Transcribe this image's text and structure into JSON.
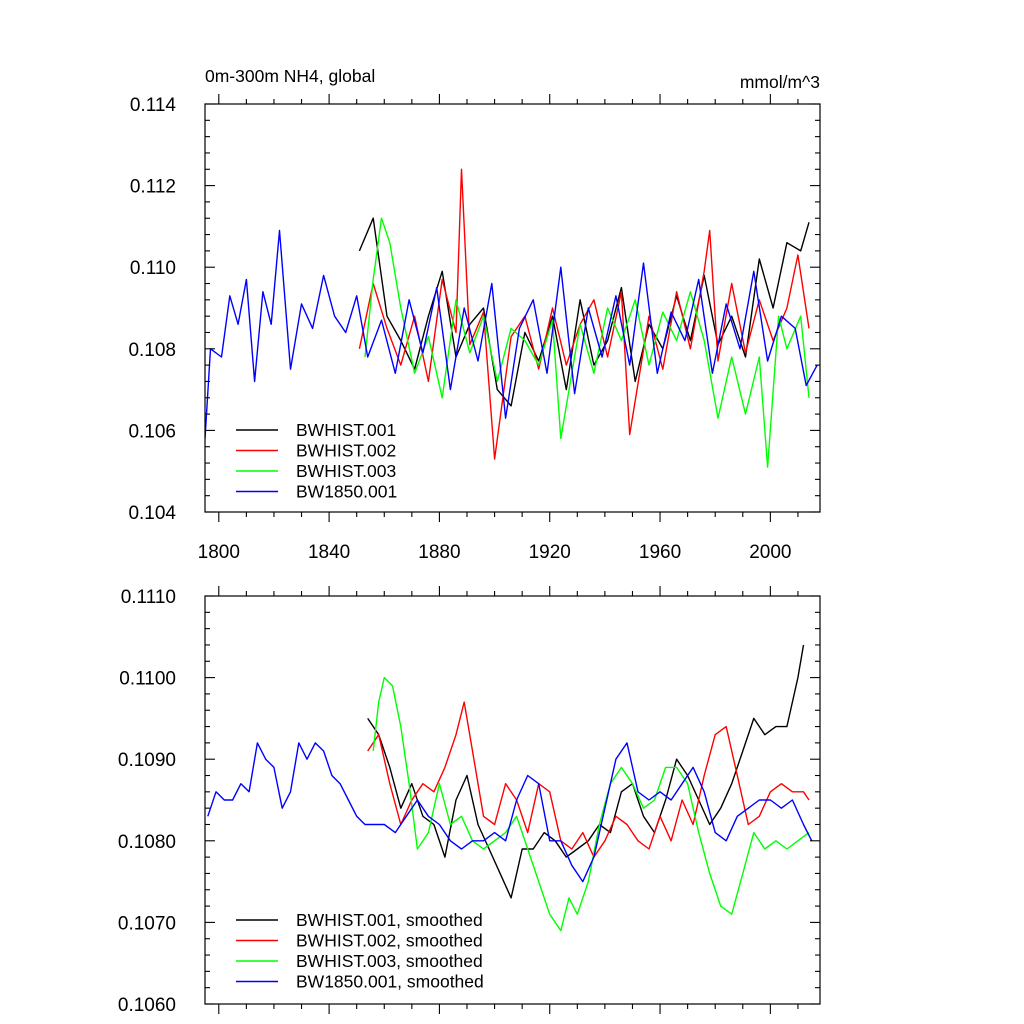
{
  "figure": {
    "title_left": "0m-300m NH4, global",
    "units": "mmol/m^3"
  },
  "chart_data": [
    {
      "type": "line",
      "title": "0m-300m NH4, global",
      "units": "mmol/m^3",
      "xlim": [
        1795,
        2018
      ],
      "ylim": [
        0.104,
        0.114
      ],
      "x_ticks": [
        1800,
        1840,
        1880,
        1920,
        1960,
        2000
      ],
      "y_ticks": [
        0.104,
        0.106,
        0.108,
        0.11,
        0.112,
        0.114
      ],
      "y_tick_labels": [
        "0.104",
        "0.106",
        "0.108",
        "0.110",
        "0.112",
        "0.114"
      ],
      "show_x_tick_labels": true,
      "grid": false,
      "legend_position": "bottom-left",
      "series": [
        {
          "name": "BWHIST.001",
          "color": "#000000",
          "x": [
            1851,
            1856,
            1861,
            1866,
            1871,
            1876,
            1881,
            1886,
            1891,
            1896,
            1901,
            1906,
            1911,
            1916,
            1921,
            1926,
            1931,
            1936,
            1941,
            1946,
            1951,
            1956,
            1961,
            1966,
            1971,
            1976,
            1981,
            1986,
            1991,
            1996,
            2001,
            2006,
            2011,
            2014
          ],
          "values": [
            0.1104,
            0.1112,
            0.1088,
            0.1082,
            0.1075,
            0.1088,
            0.1099,
            0.1078,
            0.1086,
            0.109,
            0.107,
            0.1066,
            0.1084,
            0.1077,
            0.1088,
            0.107,
            0.1092,
            0.1076,
            0.1082,
            0.1095,
            0.1072,
            0.1086,
            0.108,
            0.1093,
            0.1082,
            0.1098,
            0.1081,
            0.1088,
            0.1078,
            0.1102,
            0.109,
            0.1106,
            0.1104,
            0.1111
          ]
        },
        {
          "name": "BWHIST.002",
          "color": "#ff0000",
          "x": [
            1851,
            1856,
            1861,
            1866,
            1871,
            1876,
            1881,
            1886,
            1888,
            1891,
            1896,
            1900,
            1906,
            1911,
            1916,
            1921,
            1926,
            1931,
            1936,
            1941,
            1946,
            1949,
            1956,
            1961,
            1966,
            1971,
            1976,
            1978,
            1981,
            1986,
            1991,
            1996,
            2001,
            2006,
            2010,
            2014
          ],
          "values": [
            0.108,
            0.1096,
            0.1085,
            0.1076,
            0.1088,
            0.1072,
            0.1097,
            0.1084,
            0.1124,
            0.1081,
            0.1089,
            0.1053,
            0.1083,
            0.1088,
            0.1075,
            0.109,
            0.1076,
            0.1086,
            0.1092,
            0.1078,
            0.1094,
            0.1059,
            0.1088,
            0.1075,
            0.1094,
            0.108,
            0.1099,
            0.1109,
            0.1077,
            0.1096,
            0.1079,
            0.1092,
            0.1082,
            0.109,
            0.1103,
            0.1085
          ]
        },
        {
          "name": "BWHIST.003",
          "color": "#00ff00",
          "x": [
            1853,
            1856,
            1859,
            1862,
            1866,
            1871,
            1876,
            1881,
            1886,
            1891,
            1896,
            1901,
            1906,
            1911,
            1916,
            1921,
            1924,
            1931,
            1936,
            1941,
            1946,
            1951,
            1956,
            1961,
            1966,
            1971,
            1976,
            1981,
            1986,
            1991,
            1996,
            1999,
            2003,
            2006,
            2011,
            2014
          ],
          "values": [
            0.1078,
            0.1097,
            0.1112,
            0.1106,
            0.109,
            0.1074,
            0.1083,
            0.1068,
            0.1092,
            0.1079,
            0.1088,
            0.1072,
            0.1085,
            0.1082,
            0.1076,
            0.1087,
            0.1058,
            0.1086,
            0.1074,
            0.109,
            0.1082,
            0.1092,
            0.1076,
            0.1089,
            0.1082,
            0.1094,
            0.1082,
            0.1063,
            0.1078,
            0.1064,
            0.1078,
            0.1051,
            0.1088,
            0.108,
            0.1088,
            0.1068
          ]
        },
        {
          "name": "BW1850.001",
          "color": "#0000ff",
          "x": [
            1795,
            1797,
            1801,
            1804,
            1807,
            1810,
            1813,
            1816,
            1819,
            1822,
            1826,
            1830,
            1834,
            1838,
            1842,
            1846,
            1850,
            1854,
            1859,
            1864,
            1869,
            1874,
            1879,
            1884,
            1889,
            1894,
            1899,
            1904,
            1909,
            1914,
            1919,
            1924,
            1929,
            1934,
            1939,
            1944,
            1949,
            1954,
            1959,
            1964,
            1969,
            1974,
            1979,
            1984,
            1989,
            1994,
            1999,
            2004,
            2009,
            2013,
            2017
          ],
          "values": [
            0.1058,
            0.108,
            0.1078,
            0.1093,
            0.1086,
            0.1097,
            0.1072,
            0.1094,
            0.1086,
            0.1109,
            0.1075,
            0.1091,
            0.1085,
            0.1098,
            0.1088,
            0.1084,
            0.1093,
            0.1078,
            0.1087,
            0.1074,
            0.1092,
            0.1079,
            0.1095,
            0.107,
            0.109,
            0.1077,
            0.1096,
            0.1063,
            0.1085,
            0.1092,
            0.1074,
            0.11,
            0.1069,
            0.109,
            0.1078,
            0.1093,
            0.1076,
            0.1101,
            0.1074,
            0.1089,
            0.1082,
            0.1097,
            0.1074,
            0.1091,
            0.108,
            0.1099,
            0.1077,
            0.1088,
            0.1085,
            0.1071,
            0.1076
          ]
        }
      ]
    },
    {
      "type": "line",
      "xlim": [
        1795,
        2018
      ],
      "ylim": [
        0.106,
        0.111
      ],
      "x_ticks": [
        1800,
        1840,
        1880,
        1920,
        1960,
        2000
      ],
      "y_ticks": [
        0.106,
        0.107,
        0.108,
        0.109,
        0.11,
        0.111
      ],
      "y_tick_labels": [
        "0.1060",
        "0.1070",
        "0.1080",
        "0.1090",
        "0.1100",
        "0.1110"
      ],
      "show_x_tick_labels": false,
      "grid": false,
      "legend_position": "bottom-left",
      "series": [
        {
          "name": "BWHIST.001, smoothed",
          "color": "#000000",
          "x": [
            1854,
            1858,
            1862,
            1866,
            1870,
            1874,
            1878,
            1882,
            1886,
            1890,
            1894,
            1898,
            1902,
            1906,
            1910,
            1914,
            1918,
            1922,
            1926,
            1930,
            1934,
            1938,
            1942,
            1946,
            1950,
            1954,
            1958,
            1962,
            1966,
            1970,
            1974,
            1978,
            1982,
            1986,
            1990,
            1994,
            1998,
            2002,
            2006,
            2010,
            2012
          ],
          "values": [
            0.1095,
            0.1093,
            0.1089,
            0.1084,
            0.1087,
            0.1083,
            0.1082,
            0.1078,
            0.1085,
            0.1088,
            0.1082,
            0.1079,
            0.1076,
            0.1073,
            0.1079,
            0.1079,
            0.1081,
            0.108,
            0.1078,
            0.1079,
            0.108,
            0.1082,
            0.1081,
            0.1086,
            0.1087,
            0.1083,
            0.1081,
            0.1085,
            0.109,
            0.1088,
            0.1085,
            0.1082,
            0.1084,
            0.1087,
            0.1091,
            0.1095,
            0.1093,
            0.1094,
            0.1094,
            0.11,
            0.1104
          ]
        },
        {
          "name": "BWHIST.002, smoothed",
          "color": "#ff0000",
          "x": [
            1854,
            1858,
            1862,
            1866,
            1870,
            1874,
            1878,
            1882,
            1886,
            1889,
            1892,
            1896,
            1900,
            1904,
            1908,
            1912,
            1916,
            1920,
            1924,
            1928,
            1932,
            1936,
            1940,
            1944,
            1948,
            1952,
            1956,
            1960,
            1964,
            1968,
            1972,
            1976,
            1980,
            1984,
            1988,
            1992,
            1996,
            2000,
            2004,
            2008,
            2012,
            2014
          ],
          "values": [
            0.1091,
            0.1093,
            0.1087,
            0.1082,
            0.1085,
            0.1087,
            0.1086,
            0.1089,
            0.1093,
            0.1097,
            0.1091,
            0.1083,
            0.1082,
            0.1087,
            0.1085,
            0.1081,
            0.1087,
            0.1086,
            0.108,
            0.1079,
            0.1081,
            0.1078,
            0.108,
            0.1083,
            0.1082,
            0.108,
            0.1079,
            0.1083,
            0.108,
            0.1085,
            0.1082,
            0.1088,
            0.1093,
            0.1094,
            0.1088,
            0.1082,
            0.1083,
            0.1086,
            0.1087,
            0.1086,
            0.1086,
            0.1085
          ]
        },
        {
          "name": "BWHIST.003, smoothed",
          "color": "#00ff00",
          "x": [
            1856,
            1858,
            1860,
            1863,
            1866,
            1869,
            1872,
            1876,
            1880,
            1884,
            1888,
            1892,
            1896,
            1900,
            1904,
            1908,
            1912,
            1916,
            1920,
            1924,
            1927,
            1930,
            1934,
            1938,
            1942,
            1946,
            1950,
            1954,
            1958,
            1962,
            1966,
            1970,
            1974,
            1978,
            1982,
            1986,
            1990,
            1994,
            1998,
            2002,
            2006,
            2010,
            2014
          ],
          "values": [
            0.1091,
            0.1097,
            0.11,
            0.1099,
            0.1094,
            0.1087,
            0.1079,
            0.1081,
            0.1087,
            0.1082,
            0.1083,
            0.108,
            0.1079,
            0.108,
            0.1081,
            0.1083,
            0.1079,
            0.1075,
            0.1071,
            0.1069,
            0.1073,
            0.1071,
            0.1075,
            0.1082,
            0.1087,
            0.1089,
            0.1087,
            0.1084,
            0.1085,
            0.1089,
            0.1089,
            0.1087,
            0.1081,
            0.1076,
            0.1072,
            0.1071,
            0.1076,
            0.1081,
            0.1079,
            0.108,
            0.1079,
            0.108,
            0.1081
          ]
        },
        {
          "name": "BW1850.001, smoothed",
          "color": "#0000ff",
          "x": [
            1796,
            1799,
            1802,
            1805,
            1808,
            1811,
            1814,
            1817,
            1820,
            1823,
            1826,
            1829,
            1832,
            1835,
            1838,
            1841,
            1844,
            1847,
            1850,
            1853,
            1856,
            1860,
            1864,
            1868,
            1872,
            1876,
            1880,
            1884,
            1888,
            1892,
            1896,
            1900,
            1904,
            1908,
            1912,
            1916,
            1920,
            1924,
            1928,
            1932,
            1936,
            1940,
            1944,
            1948,
            1952,
            1956,
            1960,
            1964,
            1968,
            1972,
            1976,
            1980,
            1984,
            1988,
            1992,
            1996,
            2000,
            2004,
            2008,
            2012,
            2015
          ],
          "values": [
            0.1083,
            0.1086,
            0.1085,
            0.1085,
            0.1087,
            0.1086,
            0.1092,
            0.109,
            0.1089,
            0.1084,
            0.1086,
            0.1092,
            0.109,
            0.1092,
            0.1091,
            0.1088,
            0.1087,
            0.1085,
            0.1083,
            0.1082,
            0.1082,
            0.1082,
            0.1081,
            0.1083,
            0.1085,
            0.1083,
            0.1082,
            0.108,
            0.1079,
            0.108,
            0.108,
            0.1081,
            0.108,
            0.1085,
            0.1088,
            0.1087,
            0.108,
            0.108,
            0.1077,
            0.1075,
            0.1078,
            0.1084,
            0.109,
            0.1092,
            0.1086,
            0.1085,
            0.1086,
            0.1085,
            0.1087,
            0.1089,
            0.1086,
            0.1081,
            0.108,
            0.1083,
            0.1084,
            0.1085,
            0.1085,
            0.1084,
            0.1085,
            0.1082,
            0.108
          ]
        }
      ]
    }
  ]
}
